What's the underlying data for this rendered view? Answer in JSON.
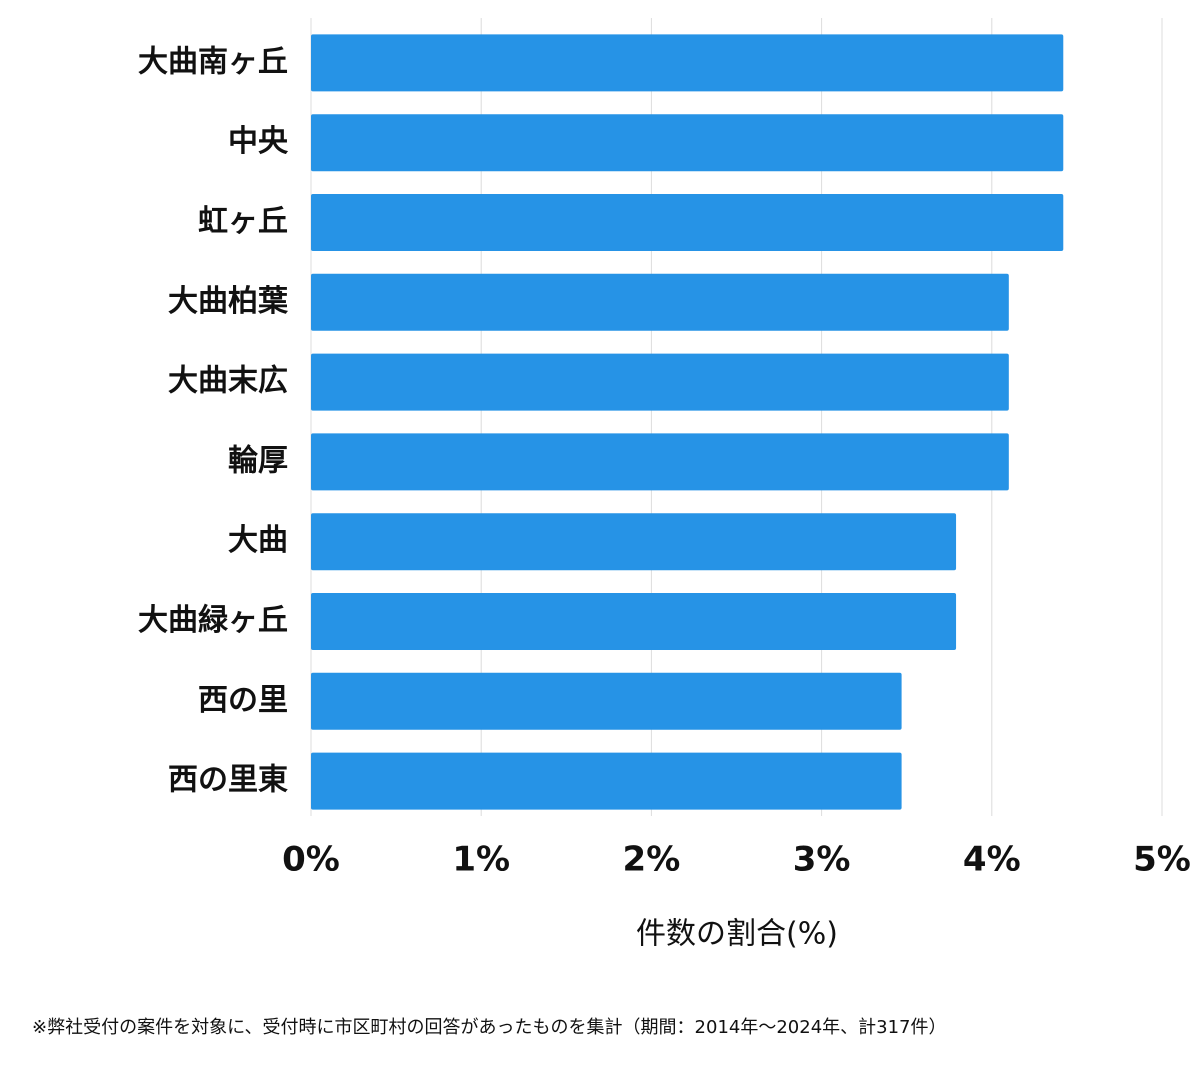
{
  "chart_data": {
    "type": "bar",
    "orientation": "horizontal",
    "categories": [
      "大曲南ヶ丘",
      "中央",
      "虹ヶ丘",
      "大曲柏葉",
      "大曲末広",
      "輪厚",
      "大曲",
      "大曲緑ヶ丘",
      "西の里",
      "西の里東"
    ],
    "values": [
      4.42,
      4.42,
      4.42,
      4.1,
      4.1,
      4.1,
      3.79,
      3.79,
      3.47,
      3.47
    ],
    "color": "#2693e6",
    "xlim": [
      0,
      5
    ],
    "xticks": [
      {
        "value": 0,
        "label": "0%"
      },
      {
        "value": 1,
        "label": "1%"
      },
      {
        "value": 2,
        "label": "2%"
      },
      {
        "value": 3,
        "label": "3%"
      },
      {
        "value": 4,
        "label": "4%"
      },
      {
        "value": 5,
        "label": "5%"
      }
    ],
    "x_label": "件数の割合(%)",
    "grid": true,
    "footnote": "※弊社受付の案件を対象に、受付時に市区町村の回答があったものを集計（期間：2014年～2024年、計317件）"
  }
}
